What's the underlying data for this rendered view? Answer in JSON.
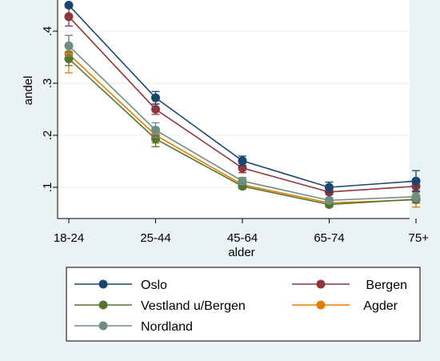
{
  "chart_data": {
    "type": "line",
    "title": "",
    "xlabel": "alder",
    "ylabel": "andel",
    "categories": [
      "18-24",
      "25-44",
      "45-64",
      "65-74",
      "75+"
    ],
    "ylim": [
      0.04,
      0.46
    ],
    "yticks": [
      0.1,
      0.2,
      0.3,
      0.4
    ],
    "ytick_labels": [
      ".1",
      ".2",
      ".3",
      ".4"
    ],
    "grid": true,
    "legend_placement": "bottom",
    "series": [
      {
        "name": "Oslo",
        "color": "#1a476f",
        "values": [
          0.45,
          0.272,
          0.151,
          0.1,
          0.112
        ],
        "ci_low": [
          0.45,
          0.26,
          0.142,
          0.09,
          0.093
        ],
        "ci_high": [
          0.45,
          0.284,
          0.16,
          0.11,
          0.132
        ]
      },
      {
        "name": "Bergen",
        "color": "#90353b",
        "values": [
          0.428,
          0.25,
          0.137,
          0.091,
          0.102
        ],
        "ci_low": [
          0.41,
          0.24,
          0.128,
          0.086,
          0.092
        ],
        "ci_high": [
          0.446,
          0.26,
          0.146,
          0.096,
          0.112
        ]
      },
      {
        "name": "Vestland u/Bergen",
        "color": "#55752f",
        "values": [
          0.347,
          0.193,
          0.102,
          0.067,
          0.077
        ],
        "ci_low": [
          0.334,
          0.178,
          0.097,
          0.063,
          0.07
        ],
        "ci_high": [
          0.36,
          0.208,
          0.107,
          0.071,
          0.084
        ]
      },
      {
        "name": "Agder",
        "color": "#e37e00",
        "values": [
          0.356,
          0.2,
          0.105,
          0.07,
          0.076
        ],
        "ci_low": [
          0.32,
          0.185,
          0.098,
          0.062,
          0.062
        ],
        "ci_high": [
          0.392,
          0.215,
          0.112,
          0.078,
          0.09
        ]
      },
      {
        "name": "Nordland",
        "color": "#6e8e84",
        "values": [
          0.372,
          0.21,
          0.112,
          0.075,
          0.082
        ],
        "ci_low": [
          0.352,
          0.196,
          0.105,
          0.07,
          0.073
        ],
        "ci_high": [
          0.392,
          0.224,
          0.119,
          0.08,
          0.091
        ]
      }
    ]
  }
}
